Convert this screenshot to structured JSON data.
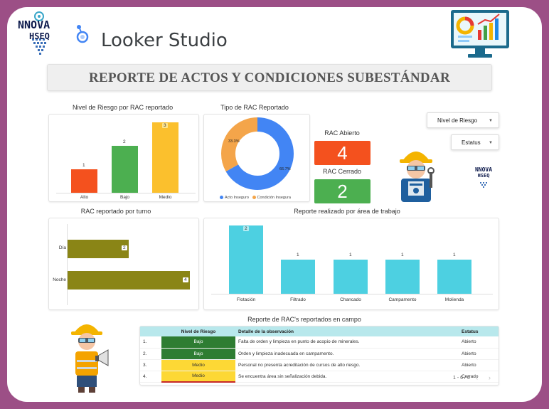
{
  "app": {
    "brand_line1": "NNOVA",
    "brand_line2": "HSEQ",
    "product_name": "Looker Studio"
  },
  "report": {
    "title": "REPORTE DE ACTOS Y CONDICIONES SUBESTÁNDAR",
    "colors": {
      "red": "#f4511e",
      "green": "#4caf50",
      "yellow": "#fbc02d",
      "olive": "#8a8516",
      "cyan": "#4dd0e1",
      "blue": "#4285f4",
      "orange": "#f4a54a"
    }
  },
  "risk_chart": {
    "title": "Nivel de Riesgo por RAC reportado",
    "chart_data": {
      "type": "bar",
      "categories": [
        "Alto",
        "Bajo",
        "Medio"
      ],
      "values": [
        1,
        2,
        3
      ],
      "title": "Nivel de Riesgo por RAC reportado"
    }
  },
  "type_chart": {
    "title": "Tipo de RAC Reportado",
    "chart_data": {
      "type": "pie",
      "categories": [
        "Acto Inseguro",
        "Condición Insegura"
      ],
      "values": [
        66.7,
        33.3
      ],
      "labels": [
        "66.7%",
        "33.3%"
      ]
    },
    "legend": [
      "Acto Inseguro",
      "Condición Insegura"
    ]
  },
  "filters": {
    "risk_level": "Nivel de Riesgo",
    "status": "Estatus"
  },
  "kpis": {
    "open_label": "RAC Abierto",
    "open_value": "4",
    "closed_label": "RAC Cerrado",
    "closed_value": "2"
  },
  "side_logo": {
    "line1": "NNOVA",
    "line2": "HSEQ"
  },
  "shift_chart": {
    "title": "RAC reportado por turno",
    "chart_data": {
      "type": "bar",
      "orientation": "horizontal",
      "categories": [
        "Día",
        "Noche"
      ],
      "values": [
        2,
        4
      ]
    }
  },
  "area_chart": {
    "title": "Reporte realizado por área de trabajo",
    "chart_data": {
      "type": "bar",
      "categories": [
        "Flotación",
        "Filtrado",
        "Chancado",
        "Campamento",
        "Molienda"
      ],
      "values": [
        2,
        1,
        1,
        1,
        1
      ]
    }
  },
  "table": {
    "title": "Reporte de RAC's reportados en campo",
    "headers": {
      "level": "Nivel de Riesgo",
      "detail": "Detalle de la observación",
      "status": "Estatus"
    },
    "rows": [
      {
        "num": "1.",
        "level": "Bajo",
        "detail": "Falta de orden y limpieza en punto de acopio de minerales.",
        "status": "Abierto"
      },
      {
        "num": "2.",
        "level": "Bajo",
        "detail": "Orden y limpieza inadecuada en campamento.",
        "status": "Abierto"
      },
      {
        "num": "3.",
        "level": "Medio",
        "detail": "Personal no presenta acreditación de cursos de alto riesgo.",
        "status": "Abierto"
      },
      {
        "num": "4.",
        "level": "Medio",
        "detail": "Se encuentra área sin señalización debida.",
        "status": "Cerrado"
      }
    ],
    "pagination": "1 - 6 / 6"
  }
}
